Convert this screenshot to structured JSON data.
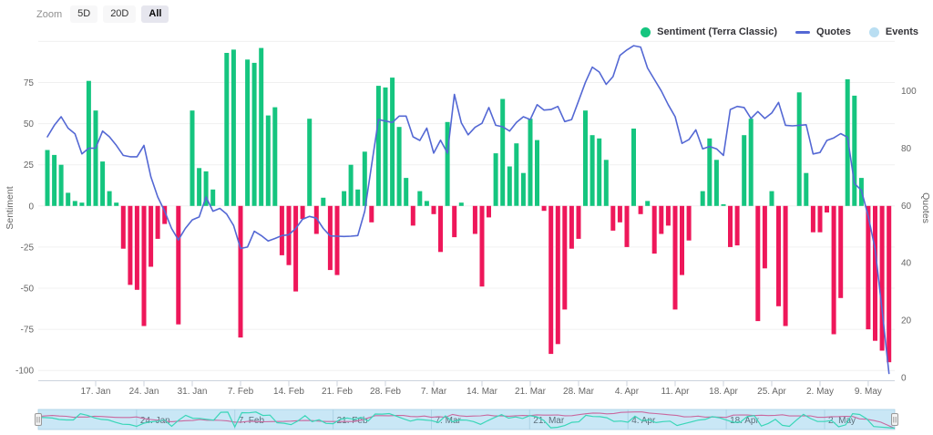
{
  "toolbar": {
    "zoom_label": "Zoom",
    "ranges": [
      {
        "label": "5D",
        "active": false
      },
      {
        "label": "20D",
        "active": false
      },
      {
        "label": "All",
        "active": true
      }
    ]
  },
  "legend": {
    "items": [
      {
        "label": "Sentiment (Terra Classic)",
        "marker": "circle",
        "color": "#15c57f"
      },
      {
        "label": "Quotes",
        "marker": "line",
        "color": "#5468d4"
      },
      {
        "label": "Events",
        "marker": "circle",
        "color": "#b9def2"
      }
    ]
  },
  "chart_data": {
    "type": "bar+line",
    "title": "",
    "x_tick_labels": [
      "17. Jan",
      "24. Jan",
      "31. Jan",
      "7. Feb",
      "14. Feb",
      "21. Feb",
      "28. Feb",
      "7. Mar",
      "14. Mar",
      "21. Mar",
      "28. Mar",
      "4. Apr",
      "11. Apr",
      "18. Apr",
      "25. Apr",
      "2. May",
      "9. May"
    ],
    "x_tick_indices": [
      7,
      14,
      21,
      28,
      35,
      42,
      49,
      56,
      63,
      70,
      77,
      84,
      91,
      98,
      105,
      112,
      119
    ],
    "y_axis_left": {
      "title": "Sentiment",
      "ticks": [
        75,
        50,
        25,
        0,
        -25,
        -50,
        -75,
        -100
      ],
      "grid_ticks": [
        100,
        75,
        50,
        25,
        0,
        -25,
        -50,
        -75,
        -100
      ],
      "min": -106,
      "max": 103
    },
    "y_axis_right": {
      "title": "Quotes",
      "ticks": [
        100,
        80,
        60,
        40,
        20,
        0
      ],
      "min": -1,
      "max": 119
    },
    "grid": true,
    "legend_position": "top-right",
    "series": [
      {
        "name": "Sentiment (Terra Classic)",
        "type": "bar",
        "axis": "left",
        "color_positive": "#15c57f",
        "color_negative": "#ee175a",
        "values": [
          34,
          31,
          25,
          8,
          3,
          2,
          76,
          58,
          27,
          9,
          2,
          -26,
          -48,
          -51,
          -73,
          -37,
          -20,
          -11,
          0,
          -72,
          0,
          58,
          23,
          21,
          10,
          0,
          93,
          95,
          -80,
          89,
          87,
          96,
          55,
          60,
          -30,
          -36,
          -52,
          -8,
          53,
          -17,
          5,
          -39,
          -42,
          9,
          25,
          10,
          33,
          -10,
          73,
          72,
          78,
          48,
          17,
          -12,
          9,
          3,
          -5,
          -28,
          51,
          -19,
          2,
          0,
          -17,
          -49,
          -7,
          32,
          65,
          24,
          38,
          20,
          53,
          40,
          -3,
          -90,
          -84,
          -63,
          -26,
          -20,
          58,
          43,
          41,
          28,
          -15,
          -10,
          -25,
          47,
          -5,
          3,
          -29,
          -17,
          -12,
          -63,
          -42,
          -21,
          0,
          9,
          41,
          28,
          1,
          -25,
          -24,
          43,
          53,
          -70,
          -38,
          9,
          -61,
          -73,
          0,
          69,
          20,
          -16,
          -16,
          -4,
          -78,
          -56,
          77,
          67,
          17,
          -75,
          -82,
          -88,
          -95
        ]
      },
      {
        "name": "Quotes",
        "type": "line",
        "axis": "right",
        "color": "#5468d4",
        "values": [
          84,
          88,
          91,
          87,
          85,
          78,
          80,
          80,
          86,
          84,
          81,
          77.5,
          77,
          77,
          81,
          70,
          63,
          58,
          52,
          48,
          52,
          55,
          56,
          63,
          58,
          59,
          57,
          53,
          45,
          45.5,
          51,
          49.5,
          47.6,
          48.5,
          49.5,
          49.8,
          52,
          55.2,
          56.2,
          55.6,
          52,
          49.4,
          49.3,
          49.2,
          49.3,
          49.5,
          58,
          74,
          90,
          89.5,
          89,
          91.2,
          91.2,
          84,
          82.7,
          87,
          78.3,
          82.8,
          78.3,
          98.8,
          88.9,
          84.7,
          87.3,
          88.7,
          94.2,
          88,
          87.5,
          86,
          89,
          91,
          90,
          95.2,
          93.3,
          93.5,
          94.6,
          89.3,
          90,
          96.5,
          103,
          108.3,
          106.6,
          102.3,
          105,
          112.4,
          114.3,
          115.8,
          115.3,
          108,
          104,
          100,
          95.2,
          91,
          81.7,
          83,
          86.4,
          79.8,
          80.6,
          79.8,
          77.5,
          93.5,
          94.6,
          94.2,
          90.4,
          92.8,
          90.4,
          92.3,
          96,
          88,
          87.8,
          88,
          88.2,
          78,
          78.5,
          82.7,
          83.6,
          85.1,
          83.8,
          67.7,
          65.3,
          56.3,
          44.8,
          23.5,
          1.4
        ]
      }
    ]
  },
  "navigator": {
    "tick_labels": [
      "24. Jan",
      "7. Feb",
      "21. Feb",
      "7. Mar",
      "21. Mar",
      "4. Apr",
      "18. Apr",
      "2. May"
    ],
    "tick_indices": [
      14,
      28,
      42,
      56,
      70,
      84,
      98,
      112
    ],
    "fill": "#c9e7f6",
    "border_color": "#a5cde1",
    "sentiment_line_color": "#3ad6b8",
    "quotes_line_color": "#c9699f",
    "handle_fill": "#f2f2f2",
    "handle_stroke": "#999999"
  }
}
